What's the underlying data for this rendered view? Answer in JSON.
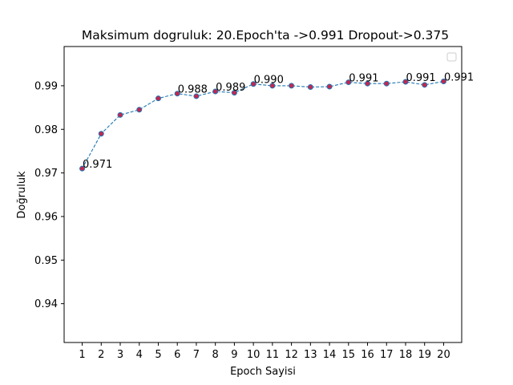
{
  "chart_data": {
    "type": "line",
    "title": "Maksimum dogruluk: 20.Epoch'ta ->0.991 Dropout->0.375",
    "xlabel": "Epoch Sayisi",
    "ylabel": "Doğruluk",
    "x": [
      1,
      2,
      3,
      4,
      5,
      6,
      7,
      8,
      9,
      10,
      11,
      12,
      13,
      14,
      15,
      16,
      17,
      18,
      19,
      20
    ],
    "x_tick_labels": [
      "1",
      "2",
      "3",
      "4",
      "5",
      "6",
      "7",
      "8",
      "9",
      "10",
      "11",
      "12",
      "13",
      "14",
      "15",
      "16",
      "17",
      "18",
      "19",
      "20"
    ],
    "series": [
      {
        "values": [
          0.971,
          0.979,
          0.9833,
          0.9845,
          0.9871,
          0.9882,
          0.9876,
          0.9887,
          0.9884,
          0.9904,
          0.99,
          0.99,
          0.9897,
          0.9898,
          0.9908,
          0.9905,
          0.9905,
          0.9909,
          0.9902,
          0.991
        ],
        "color": "#1f77b4",
        "marker_color": "#c7254e",
        "line_style": "dashed"
      }
    ],
    "annotations": [
      {
        "x": 1,
        "y": 0.971,
        "text": "0.971"
      },
      {
        "x": 6,
        "y": 0.9882,
        "text": "0.988"
      },
      {
        "x": 8,
        "y": 0.9887,
        "text": "0.989"
      },
      {
        "x": 10,
        "y": 0.9904,
        "text": "0.990"
      },
      {
        "x": 15,
        "y": 0.9908,
        "text": "0.991"
      },
      {
        "x": 18,
        "y": 0.9909,
        "text": "0.991"
      },
      {
        "x": 20,
        "y": 0.991,
        "text": "0.991"
      }
    ],
    "y_ticks": [
      0.94,
      0.95,
      0.96,
      0.97,
      0.98,
      0.99
    ],
    "y_tick_labels": [
      "0.94",
      "0.95",
      "0.96",
      "0.97",
      "0.98",
      "0.99"
    ],
    "xlim": [
      0.05,
      20.95
    ],
    "ylim": [
      0.9311,
      0.999
    ],
    "grid": false,
    "legend": "top-right"
  }
}
